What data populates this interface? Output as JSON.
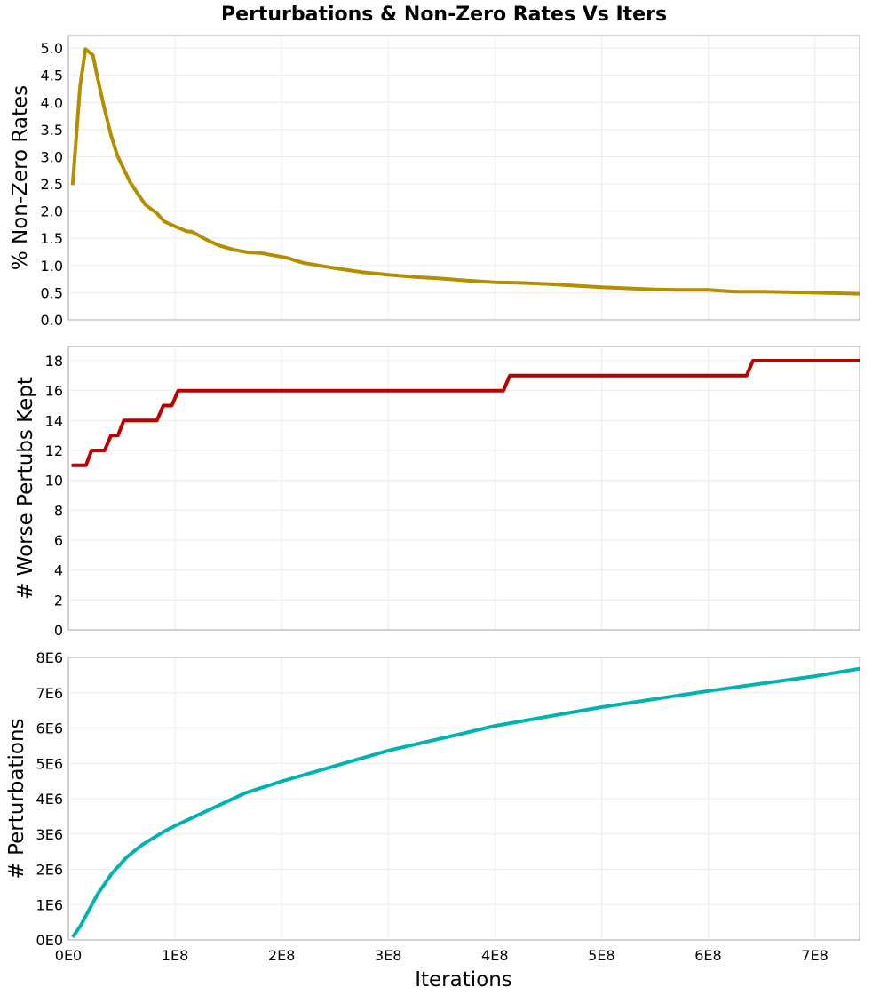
{
  "chart_data": [
    {
      "type": "line",
      "title": "Perturbations & Non-Zero Rates Vs Iters",
      "xlabel": "",
      "ylabel": "% Non-Zero Rates",
      "xlim": [
        0,
        742000000
      ],
      "ylim": [
        0,
        5.23
      ],
      "yticks": [
        0,
        0.5,
        1,
        1.5,
        2,
        2.5,
        3,
        3.5,
        4,
        4.5,
        5
      ],
      "ytick_labels": [
        "0.0",
        "0.5",
        "1.0",
        "1.5",
        "2.0",
        "2.5",
        "3.0",
        "3.5",
        "4.0",
        "4.5",
        "5.0"
      ],
      "color": "#b58e00",
      "grid": true,
      "x": [
        4000000,
        11000000,
        16000000,
        23000000,
        27500000,
        34000000,
        40000000,
        46000000,
        52500000,
        58000000,
        65000000,
        72000000,
        83000000,
        90000000,
        100000000,
        111000000,
        116000000,
        130000000,
        141000000,
        155000000,
        169000000,
        180000000,
        205000000,
        220000000,
        235000000,
        250000000,
        275000000,
        300000000,
        325000000,
        350000000,
        375000000,
        400000000,
        425000000,
        450000000,
        475000000,
        500000000,
        525000000,
        550000000,
        575000000,
        600000000,
        625000000,
        650000000,
        675000000,
        700000000,
        742000000
      ],
      "y": [
        2.48,
        4.3,
        4.98,
        4.87,
        4.44,
        3.87,
        3.4,
        3.02,
        2.75,
        2.53,
        2.32,
        2.12,
        1.96,
        1.81,
        1.72,
        1.63,
        1.62,
        1.47,
        1.37,
        1.29,
        1.24,
        1.23,
        1.14,
        1.05,
        1.0,
        0.95,
        0.88,
        0.83,
        0.79,
        0.76,
        0.72,
        0.69,
        0.68,
        0.66,
        0.63,
        0.6,
        0.58,
        0.56,
        0.55,
        0.55,
        0.52,
        0.52,
        0.51,
        0.5,
        0.48
      ]
    },
    {
      "type": "line",
      "xlabel": "",
      "ylabel": "# Worse Pertubs Kept",
      "xlim": [
        0,
        742000000
      ],
      "ylim": [
        0,
        18.95
      ],
      "yticks": [
        0,
        2,
        4,
        6,
        8,
        10,
        12,
        14,
        16,
        18
      ],
      "ytick_labels": [
        "0",
        "2",
        "4",
        "6",
        "8",
        "10",
        "12",
        "14",
        "16",
        "18"
      ],
      "color": "#bb0000",
      "grid": true,
      "x": [
        3000000,
        16500000,
        21700000,
        34000000,
        40000000,
        46500000,
        52000000,
        83000000,
        89000000,
        97000000,
        103000000,
        408000000,
        414000000,
        636000000,
        642000000,
        742000000
      ],
      "y": [
        11,
        11,
        12,
        12,
        13,
        13,
        14,
        14,
        15,
        15,
        16,
        16,
        17,
        17,
        18,
        18
      ]
    },
    {
      "type": "line",
      "xlabel": "Iterations",
      "ylabel": "# Perturbations",
      "xlim": [
        0,
        742000000
      ],
      "ylim": [
        0,
        8000000
      ],
      "yticks": [
        0,
        1000000,
        2000000,
        3000000,
        4000000,
        5000000,
        6000000,
        7000000,
        8000000
      ],
      "ytick_labels": [
        "0E0",
        "1E6",
        "2E6",
        "3E6",
        "4E6",
        "5E6",
        "6E6",
        "7E6",
        "8E6"
      ],
      "xticks": [
        0,
        100000000,
        200000000,
        300000000,
        400000000,
        500000000,
        600000000,
        700000000
      ],
      "xtick_labels": [
        "0E0",
        "1E8",
        "2E8",
        "3E8",
        "4E8",
        "5E8",
        "6E8",
        "7E8"
      ],
      "color": "#00b3b0",
      "grid": true,
      "x": [
        4000000,
        11000000,
        27500000,
        41000000,
        55000000,
        69000000,
        89000000,
        100000000,
        139000000,
        166000000,
        200000000,
        300000000,
        369000000,
        400000000,
        500000000,
        600000000,
        700000000,
        742000000
      ],
      "y": [
        80000,
        380000,
        1300000,
        1890000,
        2350000,
        2690000,
        3060000,
        3230000,
        3780000,
        4160000,
        4490000,
        5360000,
        5840000,
        6060000,
        6590000,
        7050000,
        7470000,
        7680000
      ]
    }
  ]
}
